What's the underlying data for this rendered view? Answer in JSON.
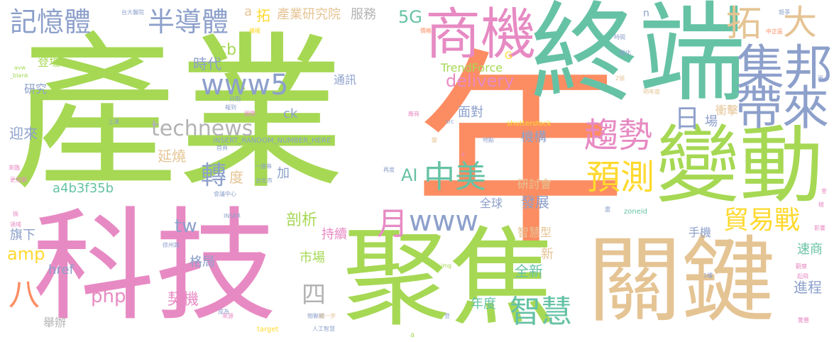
{
  "words": [
    {
      "id": "w-chanye",
      "text": "產業",
      "color": "#a6d854",
      "vertical": false
    },
    {
      "id": "w-nian",
      "text": "年",
      "color": "#fc8d62",
      "vertical": false
    },
    {
      "id": "w-zhongduan",
      "text": "終端",
      "color": "#66c2a5",
      "vertical": false
    },
    {
      "id": "w-keji",
      "text": "科技",
      "color": "#e78ac3",
      "vertical": false
    },
    {
      "id": "w-jujiao",
      "text": "聚焦",
      "color": "#a6d854",
      "vertical": false
    },
    {
      "id": "w-guanjian",
      "text": "關鍵",
      "color": "#e5c494",
      "vertical": false
    },
    {
      "id": "w-biandong",
      "text": "變動",
      "color": "#a6d854",
      "vertical": false
    },
    {
      "id": "w-shangji",
      "text": "商機",
      "color": "#e78ac3",
      "vertical": false
    },
    {
      "id": "w-jibang",
      "text": "集邦",
      "color": "#8da0cb",
      "vertical": false
    },
    {
      "id": "w-dailai",
      "text": "帶來",
      "color": "#8da0cb",
      "vertical": false
    },
    {
      "id": "w-qushi",
      "text": "趨勢",
      "color": "#e78ac3",
      "vertical": false
    },
    {
      "id": "w-yuce",
      "text": "預測",
      "color": "#ffd92f",
      "vertical": false
    },
    {
      "id": "w-maoyizhan",
      "text": "貿易戰",
      "color": "#ffd92f",
      "vertical": false
    },
    {
      "id": "w-jiyiti",
      "text": "記憶體",
      "color": "#8da0cb",
      "vertical": false
    },
    {
      "id": "w-bandaoti",
      "text": "半導體",
      "color": "#8da0cb",
      "vertical": false
    },
    {
      "id": "w-tuo1",
      "text": "拓",
      "color": "#e5c494",
      "vertical": false
    },
    {
      "id": "w-da",
      "text": "大",
      "color": "#e5c494",
      "vertical": false
    },
    {
      "id": "w-www5",
      "text": "www5",
      "color": "#8da0cb",
      "vertical": false
    },
    {
      "id": "w-technews",
      "text": "technews",
      "color": "#b3b3b3",
      "vertical": false
    },
    {
      "id": "w-zhongmei",
      "text": "中美",
      "color": "#66c2a5",
      "vertical": false
    },
    {
      "id": "w-www",
      "text": "www",
      "color": "#8da0cb",
      "vertical": false
    },
    {
      "id": "w-yue",
      "text": "月",
      "color": "#e78ac3",
      "vertical": false
    },
    {
      "id": "w-ri",
      "text": "日",
      "color": "#8da0cb",
      "vertical": false
    },
    {
      "id": "w-zhihui",
      "text": "智慧",
      "color": "#66c2a5",
      "vertical": false
    },
    {
      "id": "w-ba",
      "text": "八",
      "color": "#fc8d62",
      "vertical": false
    },
    {
      "id": "w-si",
      "text": "四",
      "color": "#b3b3b3",
      "vertical": false
    },
    {
      "id": "w-zhuan",
      "text": "轉",
      "color": "#8da0cb",
      "vertical": false
    },
    {
      "id": "w-5g",
      "text": "5G",
      "color": "#66c2a5",
      "vertical": false
    },
    {
      "id": "w-ai",
      "text": "AI",
      "color": "#66c2a5",
      "vertical": false
    },
    {
      "id": "w-delivery",
      "text": "delivery",
      "color": "#e78ac3",
      "vertical": false
    },
    {
      "id": "w-trendforce",
      "text": "TrendForce",
      "color": "#a6d854",
      "vertical": false
    },
    {
      "id": "w-chanyeyanjiuyuan",
      "text": "產業研究院",
      "color": "#e5c494",
      "vertical": false
    },
    {
      "id": "w-fuwu",
      "text": "服務",
      "color": "#b3b3b3",
      "vertical": false
    },
    {
      "id": "w-a1",
      "text": "a",
      "color": "#e5c494",
      "vertical": false
    },
    {
      "id": "w-tuo2",
      "text": "拓",
      "color": "#ffd92f",
      "vertical": false
    },
    {
      "id": "w-cb",
      "text": "cb",
      "color": "#a6d854",
      "vertical": false
    },
    {
      "id": "w-shidai",
      "text": "時代",
      "color": "#8da0cb",
      "vertical": false
    },
    {
      "id": "w-dengchang",
      "text": "登場",
      "color": "#a6d854",
      "vertical": false
    },
    {
      "id": "w-yanjiu",
      "text": "研究",
      "color": "#8da0cb",
      "vertical": false
    },
    {
      "id": "w-tongxun",
      "text": "通訊",
      "color": "#8da0cb",
      "vertical": false
    },
    {
      "id": "w-ck",
      "text": "ck",
      "color": "#8da0cb",
      "vertical": false
    },
    {
      "id": "w-mianhui",
      "text": "面對",
      "color": "#8da0cb",
      "vertical": false
    },
    {
      "id": "w-jigou",
      "text": "機構",
      "color": "#8da0cb",
      "vertical": false
    },
    {
      "id": "w-yinglai",
      "text": "迎來",
      "color": "#8da0cb",
      "vertical": false
    },
    {
      "id": "w-yanshao",
      "text": "延燒",
      "color": "#e5c494",
      "vertical": false
    },
    {
      "id": "w-du",
      "text": "度",
      "color": "#e5c494",
      "vertical": false
    },
    {
      "id": "w-jia",
      "text": "加",
      "color": "#8da0cb",
      "vertical": false
    },
    {
      "id": "w-a4b3f35b",
      "text": "a4b3f35b",
      "color": "#66c2a5",
      "vertical": false
    },
    {
      "id": "w-yantaohui",
      "text": "研討會",
      "color": "#e5c494",
      "vertical": false
    },
    {
      "id": "w-fazhan",
      "text": "發展",
      "color": "#8da0cb",
      "vertical": false
    },
    {
      "id": "w-quanqiu",
      "text": "全球",
      "color": "#8da0cb",
      "vertical": false
    },
    {
      "id": "w-tw",
      "text": "tw",
      "color": "#8da0cb",
      "vertical": false
    },
    {
      "id": "w-amp",
      "text": "amp",
      "color": "#ffd92f",
      "vertical": false
    },
    {
      "id": "w-pouxi",
      "text": "剖析",
      "color": "#a6d854",
      "vertical": false
    },
    {
      "id": "w-chixu",
      "text": "持續",
      "color": "#e78ac3",
      "vertical": false
    },
    {
      "id": "w-zhihuixing",
      "text": "智慧型",
      "color": "#e5c494",
      "vertical": false
    },
    {
      "id": "w-shouji",
      "text": "手機",
      "color": "#8da0cb",
      "vertical": false
    },
    {
      "id": "w-chongji",
      "text": "衝擊",
      "color": "#e5c494",
      "vertical": false
    },
    {
      "id": "w-chang",
      "text": "場",
      "color": "#8da0cb",
      "vertical": false
    },
    {
      "id": "w-qixia",
      "text": "旗下",
      "color": "#8da0cb",
      "vertical": false
    },
    {
      "id": "w-shichang",
      "text": "市場",
      "color": "#a6d854",
      "vertical": false
    },
    {
      "id": "w-geju",
      "text": "格局",
      "color": "#8da0cb",
      "vertical": false
    },
    {
      "id": "w-href",
      "text": "href",
      "color": "#8da0cb",
      "vertical": false
    },
    {
      "id": "w-php",
      "text": "php",
      "color": "#e78ac3",
      "vertical": false
    },
    {
      "id": "w-qiji",
      "text": "契機",
      "color": "#e78ac3",
      "vertical": false
    },
    {
      "id": "w-xin",
      "text": "新",
      "color": "#e5c494",
      "vertical": false
    },
    {
      "id": "w-quanxin",
      "text": "全新",
      "color": "#66c2a5",
      "vertical": false
    },
    {
      "id": "w-niandu",
      "text": "年度",
      "color": "#66c2a5",
      "vertical": false
    },
    {
      "id": "w-jincheng",
      "text": "進程",
      "color": "#8da0cb",
      "vertical": false
    },
    {
      "id": "w-sushang",
      "text": "速商",
      "color": "#66c2a5",
      "vertical": false
    },
    {
      "id": "w-juban",
      "text": "舉辦",
      "color": "#b3b3b3",
      "vertical": false
    },
    {
      "id": "w-g",
      "text": "G",
      "color": "#ffd92f",
      "vertical": false
    },
    {
      "id": "w-n",
      "text": "n",
      "color": "#8da0cb",
      "vertical": false
    },
    {
      "id": "w-insert-long",
      "text": "INSERT_RANDOM_NUMBER_HERE",
      "color": "#8da0cb",
      "vertical": false
    },
    {
      "id": "w-shutterstock",
      "text": "shutterstock",
      "color": "#ffd92f",
      "vertical": false
    },
    {
      "id": "w-src",
      "text": "src",
      "color": "#8da0cb",
      "vertical": false
    },
    {
      "id": "w-img",
      "text": "img",
      "color": "#a6d854",
      "vertical": false
    },
    {
      "id": "w-target",
      "text": "target",
      "color": "#ffd92f",
      "vertical": false
    },
    {
      "id": "w-zoneid",
      "text": "zoneid",
      "color": "#66c2a5",
      "vertical": false
    },
    {
      "id": "w-inser",
      "text": "INSER",
      "color": "#8da0cb",
      "vertical": false
    },
    {
      "id": "w-avw",
      "text": "avw",
      "color": "#a6d854",
      "vertical": false
    },
    {
      "id": "w-blank",
      "text": "_blank",
      "color": "#a6d854",
      "vertical": false
    },
    {
      "id": "w-a2",
      "text": "a",
      "color": "#a6d854",
      "vertical": false
    },
    {
      "id": "w-taidayiyuan",
      "text": "台大醫院",
      "color": "#8da0cb",
      "vertical": false
    },
    {
      "id": "w-huayuan",
      "text": "擴權",
      "color": "#ffd92f",
      "vertical": false
    },
    {
      "id": "w-jiage",
      "text": "價格",
      "color": "#fc8d62",
      "vertical": false
    },
    {
      "id": "w-jingzheng",
      "text": "競爭",
      "color": "#8da0cb",
      "vertical": false
    },
    {
      "id": "w-zhongzhengqu",
      "text": "中正區",
      "color": "#fc8d62",
      "vertical": false
    },
    {
      "id": "w-shijian",
      "text": "時間",
      "color": "#8da0cb",
      "vertical": false
    },
    {
      "id": "w-bianhua",
      "text": "變化",
      "color": "#8da0cb",
      "vertical": false
    },
    {
      "id": "w-2hao",
      "text": "2號",
      "color": "#e5c494",
      "vertical": false
    },
    {
      "id": "w-geng",
      "text": "更",
      "color": "#8da0cb",
      "vertical": false
    },
    {
      "id": "w-mingniandu",
      "text": "明年度",
      "color": "#e5c494",
      "vertical": false
    },
    {
      "id": "w-riqi",
      "text": "日期",
      "color": "#8da0cb",
      "vertical": false
    },
    {
      "id": "w-baodao",
      "text": "報到",
      "color": "#8da0cb",
      "vertical": false
    },
    {
      "id": "w-guoji",
      "text": "國際",
      "color": "#e78ac3",
      "vertical": false
    },
    {
      "id": "w-changshang",
      "text": "廠商",
      "color": "#e78ac3",
      "vertical": false
    },
    {
      "id": "w-shangyan",
      "text": "上演",
      "color": "#8da0cb",
      "vertical": false
    },
    {
      "id": "w-shouye",
      "text": "首頁",
      "color": "#8da0cb",
      "vertical": false
    },
    {
      "id": "w-bian",
      "text": "變",
      "color": "#e5c494",
      "vertical": false
    },
    {
      "id": "w-didian",
      "text": "地點",
      "color": "#8da0cb",
      "vertical": false
    },
    {
      "id": "w-lianchuang",
      "text": "一連串",
      "color": "#8da0cb",
      "vertical": false
    },
    {
      "id": "w-taibeishi",
      "text": "台北市",
      "color": "#8da0cb",
      "vertical": false
    },
    {
      "id": "w-huiyizhongxin",
      "text": "會議中心",
      "color": "#8da0cb",
      "vertical": false
    },
    {
      "id": "w-zaidu",
      "text": "再度",
      "color": "#8da0cb",
      "vertical": false
    },
    {
      "id": "w-xuzhoulu",
      "text": "徐州路",
      "color": "#8da0cb",
      "vertical": false
    },
    {
      "id": "w-laomao",
      "text": "來臨",
      "color": "#e78ac3",
      "vertical": false
    },
    {
      "id": "w-genchuang",
      "text": "更加劇",
      "color": "#e78ac3",
      "vertical": false
    },
    {
      "id": "w-wo",
      "text": "倘",
      "color": "#e78ac3",
      "vertical": false
    },
    {
      "id": "w-lingyu",
      "text": "領域",
      "color": "#e78ac3",
      "vertical": false
    },
    {
      "id": "w-chengwei",
      "text": "成為",
      "color": "#8da0cb",
      "vertical": false
    },
    {
      "id": "w-laiyuan",
      "text": "來源",
      "color": "#e78ac3",
      "vertical": false
    },
    {
      "id": "w-wulianwang",
      "text": "物聯網",
      "color": "#8da0cb",
      "vertical": false
    },
    {
      "id": "w-jinyibu",
      "text": "進一步",
      "color": "#e5c494",
      "vertical": false
    },
    {
      "id": "w-rengongzhihui",
      "text": "人工智慧",
      "color": "#8da0cb",
      "vertical": false
    },
    {
      "id": "w-deng",
      "text": "登",
      "color": "#8da0cb",
      "vertical": false
    },
    {
      "id": "w-1lou",
      "text": "1樓",
      "color": "#8da0cb",
      "vertical": false
    },
    {
      "id": "w-zhaoshi",
      "text": "觀察",
      "color": "#e78ac3",
      "vertical": false
    },
    {
      "id": "w-qifei",
      "text": "起飛",
      "color": "#e78ac3",
      "vertical": false
    },
    {
      "id": "w-qiaoxiang",
      "text": "驚豐",
      "color": "#e78ac3",
      "vertical": false
    },
    {
      "id": "w-yingxiang",
      "text": "影響",
      "color": "#e78ac3",
      "vertical": false
    },
    {
      "id": "w-shi",
      "text": "室",
      "color": "#e78ac3",
      "vertical": false
    },
    {
      "id": "w-leng",
      "text": "稜",
      "color": "#e78ac3",
      "vertical": false
    },
    {
      "id": "w-xuan",
      "text": "盡",
      "color": "#8da0cb",
      "vertical": false
    },
    {
      "id": "w-a3",
      "text": "a",
      "color": "#e78ac3",
      "vertical": false
    }
  ]
}
